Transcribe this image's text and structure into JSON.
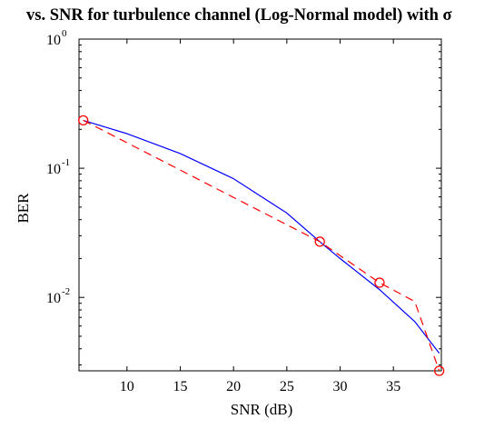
{
  "chart_data": {
    "type": "line",
    "title": "vs. SNR for turbulence channel (Log-Normal model) with σ",
    "xlabel": "SNR (dB)",
    "ylabel": "BER",
    "xlim": [
      5.5,
      39.5
    ],
    "ylim": [
      0.0027,
      1
    ],
    "yscale": "log",
    "grid": false,
    "x_ticks": [
      10,
      15,
      20,
      25,
      30,
      35
    ],
    "y_ticks": [
      {
        "value": 0.01,
        "base": "10",
        "exp": "-2"
      },
      {
        "value": 0.1,
        "base": "10",
        "exp": "-1"
      },
      {
        "value": 1,
        "base": "10",
        "exp": "0"
      }
    ],
    "series": [
      {
        "style": "solid",
        "color": "#0000ff",
        "x": [
          5.9,
          10,
          15,
          20,
          25,
          28.1,
          30,
          33.7,
          37,
          39.3
        ],
        "y": [
          0.235,
          0.185,
          0.13,
          0.083,
          0.045,
          0.027,
          0.02,
          0.0115,
          0.0065,
          0.0037
        ]
      },
      {
        "style": "dashed",
        "color": "#ff0000",
        "marker": "circle",
        "x": [
          5.9,
          28.1,
          33.7,
          37.0,
          39.3
        ],
        "y": [
          0.235,
          0.027,
          0.013,
          0.0093,
          0.0027
        ],
        "marker_x": [
          5.9,
          28.1,
          33.7,
          39.3
        ],
        "marker_y": [
          0.235,
          0.027,
          0.013,
          0.0027
        ]
      }
    ]
  }
}
